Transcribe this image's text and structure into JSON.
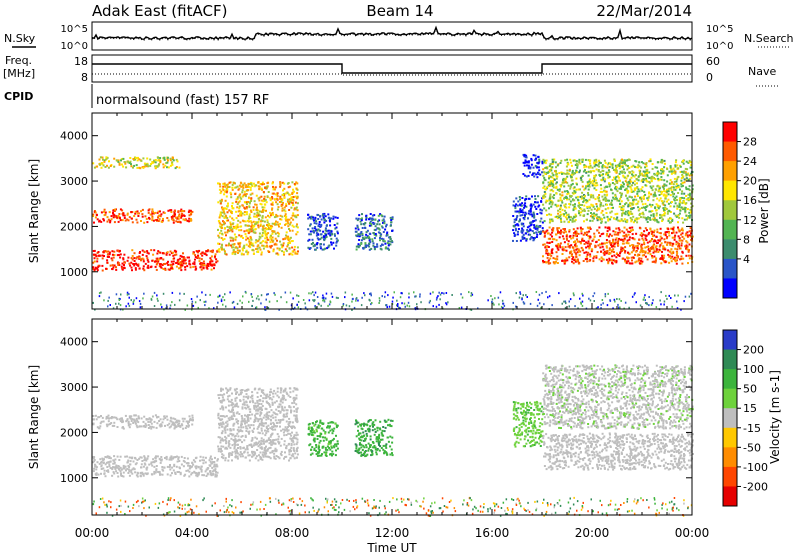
{
  "header": {
    "station": "Adak East (fitACF)",
    "beam": "Beam 14",
    "date": "22/Mar/2014"
  },
  "top_panels": {
    "nsky_label": "N.Sky",
    "nsearch_label": "N.Search",
    "noise_ticks": [
      "10^5",
      "10^0"
    ],
    "freq_label_1": "Freq.",
    "freq_label_2": "[MHz]",
    "freq_ticks": [
      "18",
      "8"
    ],
    "nave_label": "Nave",
    "nave_ticks": [
      "60",
      "0"
    ],
    "cpid_label": "CPID",
    "cpid_text": "normalsound (fast) 157 RF"
  },
  "colorbars": {
    "power": {
      "label": "Power [dB]",
      "ticks": [
        "28",
        "24",
        "20",
        "16",
        "12",
        "8",
        "4"
      ],
      "colors": [
        "#0000ff",
        "#2a55c8",
        "#3c8c6e",
        "#52b452",
        "#a0c83c",
        "#ffe600",
        "#ffa000",
        "#ff5a00",
        "#ff0000"
      ]
    },
    "velocity": {
      "label": "Velocity [m s-1]",
      "ticks": [
        "200",
        "100",
        "50",
        "15",
        "-15",
        "-50",
        "-100",
        "-200"
      ],
      "colors": [
        "#2a3cc8",
        "#2f8a55",
        "#3cb43c",
        "#6ed23c",
        "#bebebe",
        "#ffc800",
        "#ff8c00",
        "#ff4600",
        "#e60000"
      ]
    }
  },
  "chart_data": [
    {
      "type": "heatmap",
      "title": "Power",
      "ylabel": "Slant Range [km]",
      "xlabel": "",
      "x_ticks": [
        "00:00",
        "04:00",
        "08:00",
        "12:00",
        "16:00",
        "20:00",
        "00:00"
      ],
      "y_ticks": [
        1000,
        2000,
        3000,
        4000
      ],
      "xlim": [
        0,
        24
      ],
      "ylim": [
        180,
        4500
      ],
      "regions": [
        {
          "t0": 0,
          "t1": 5,
          "r0": 1050,
          "r1": 1500,
          "value": 28
        },
        {
          "t0": 0,
          "t1": 4,
          "r0": 2100,
          "r1": 2400,
          "value": 26
        },
        {
          "t0": 0,
          "t1": 3.5,
          "r0": 3300,
          "r1": 3550,
          "value": 18
        },
        {
          "t0": 5,
          "t1": 8.2,
          "r0": 1400,
          "r1": 3000,
          "value": 20
        },
        {
          "t0": 8.6,
          "t1": 9.8,
          "r0": 1500,
          "r1": 2300,
          "value": 6
        },
        {
          "t0": 10.5,
          "t1": 12,
          "r0": 1500,
          "r1": 2300,
          "value": 8
        },
        {
          "t0": 16.8,
          "t1": 18,
          "r0": 1700,
          "r1": 2700,
          "value": 5
        },
        {
          "t0": 17.2,
          "t1": 18,
          "r0": 3100,
          "r1": 3600,
          "value": 4
        },
        {
          "t0": 18,
          "t1": 24,
          "r0": 1200,
          "r1": 2000,
          "value": 26
        },
        {
          "t0": 18,
          "t1": 24,
          "r0": 2100,
          "r1": 3500,
          "value": 16
        }
      ]
    },
    {
      "type": "heatmap",
      "title": "Velocity",
      "ylabel": "Slant Range [km]",
      "xlabel": "Time UT",
      "x_ticks": [
        "00:00",
        "04:00",
        "08:00",
        "12:00",
        "16:00",
        "20:00",
        "00:00"
      ],
      "y_ticks": [
        1000,
        2000,
        3000,
        4000
      ],
      "xlim": [
        0,
        24
      ],
      "ylim": [
        180,
        4500
      ],
      "regions": [
        {
          "t0": 0,
          "t1": 5,
          "r0": 1050,
          "r1": 1500,
          "value": 0
        },
        {
          "t0": 0,
          "t1": 4,
          "r0": 2100,
          "r1": 2400,
          "value": 0
        },
        {
          "t0": 5,
          "t1": 8.2,
          "r0": 1400,
          "r1": 3000,
          "value": 0
        },
        {
          "t0": 8.6,
          "t1": 9.8,
          "r0": 1500,
          "r1": 2300,
          "value": 60
        },
        {
          "t0": 10.5,
          "t1": 12,
          "r0": 1500,
          "r1": 2300,
          "value": 90
        },
        {
          "t0": 16.8,
          "t1": 18,
          "r0": 1700,
          "r1": 2700,
          "value": 40
        },
        {
          "t0": 18,
          "t1": 24,
          "r0": 1200,
          "r1": 2000,
          "value": 0
        },
        {
          "t0": 18,
          "t1": 24,
          "r0": 2100,
          "r1": 3500,
          "value": 5
        }
      ]
    }
  ]
}
